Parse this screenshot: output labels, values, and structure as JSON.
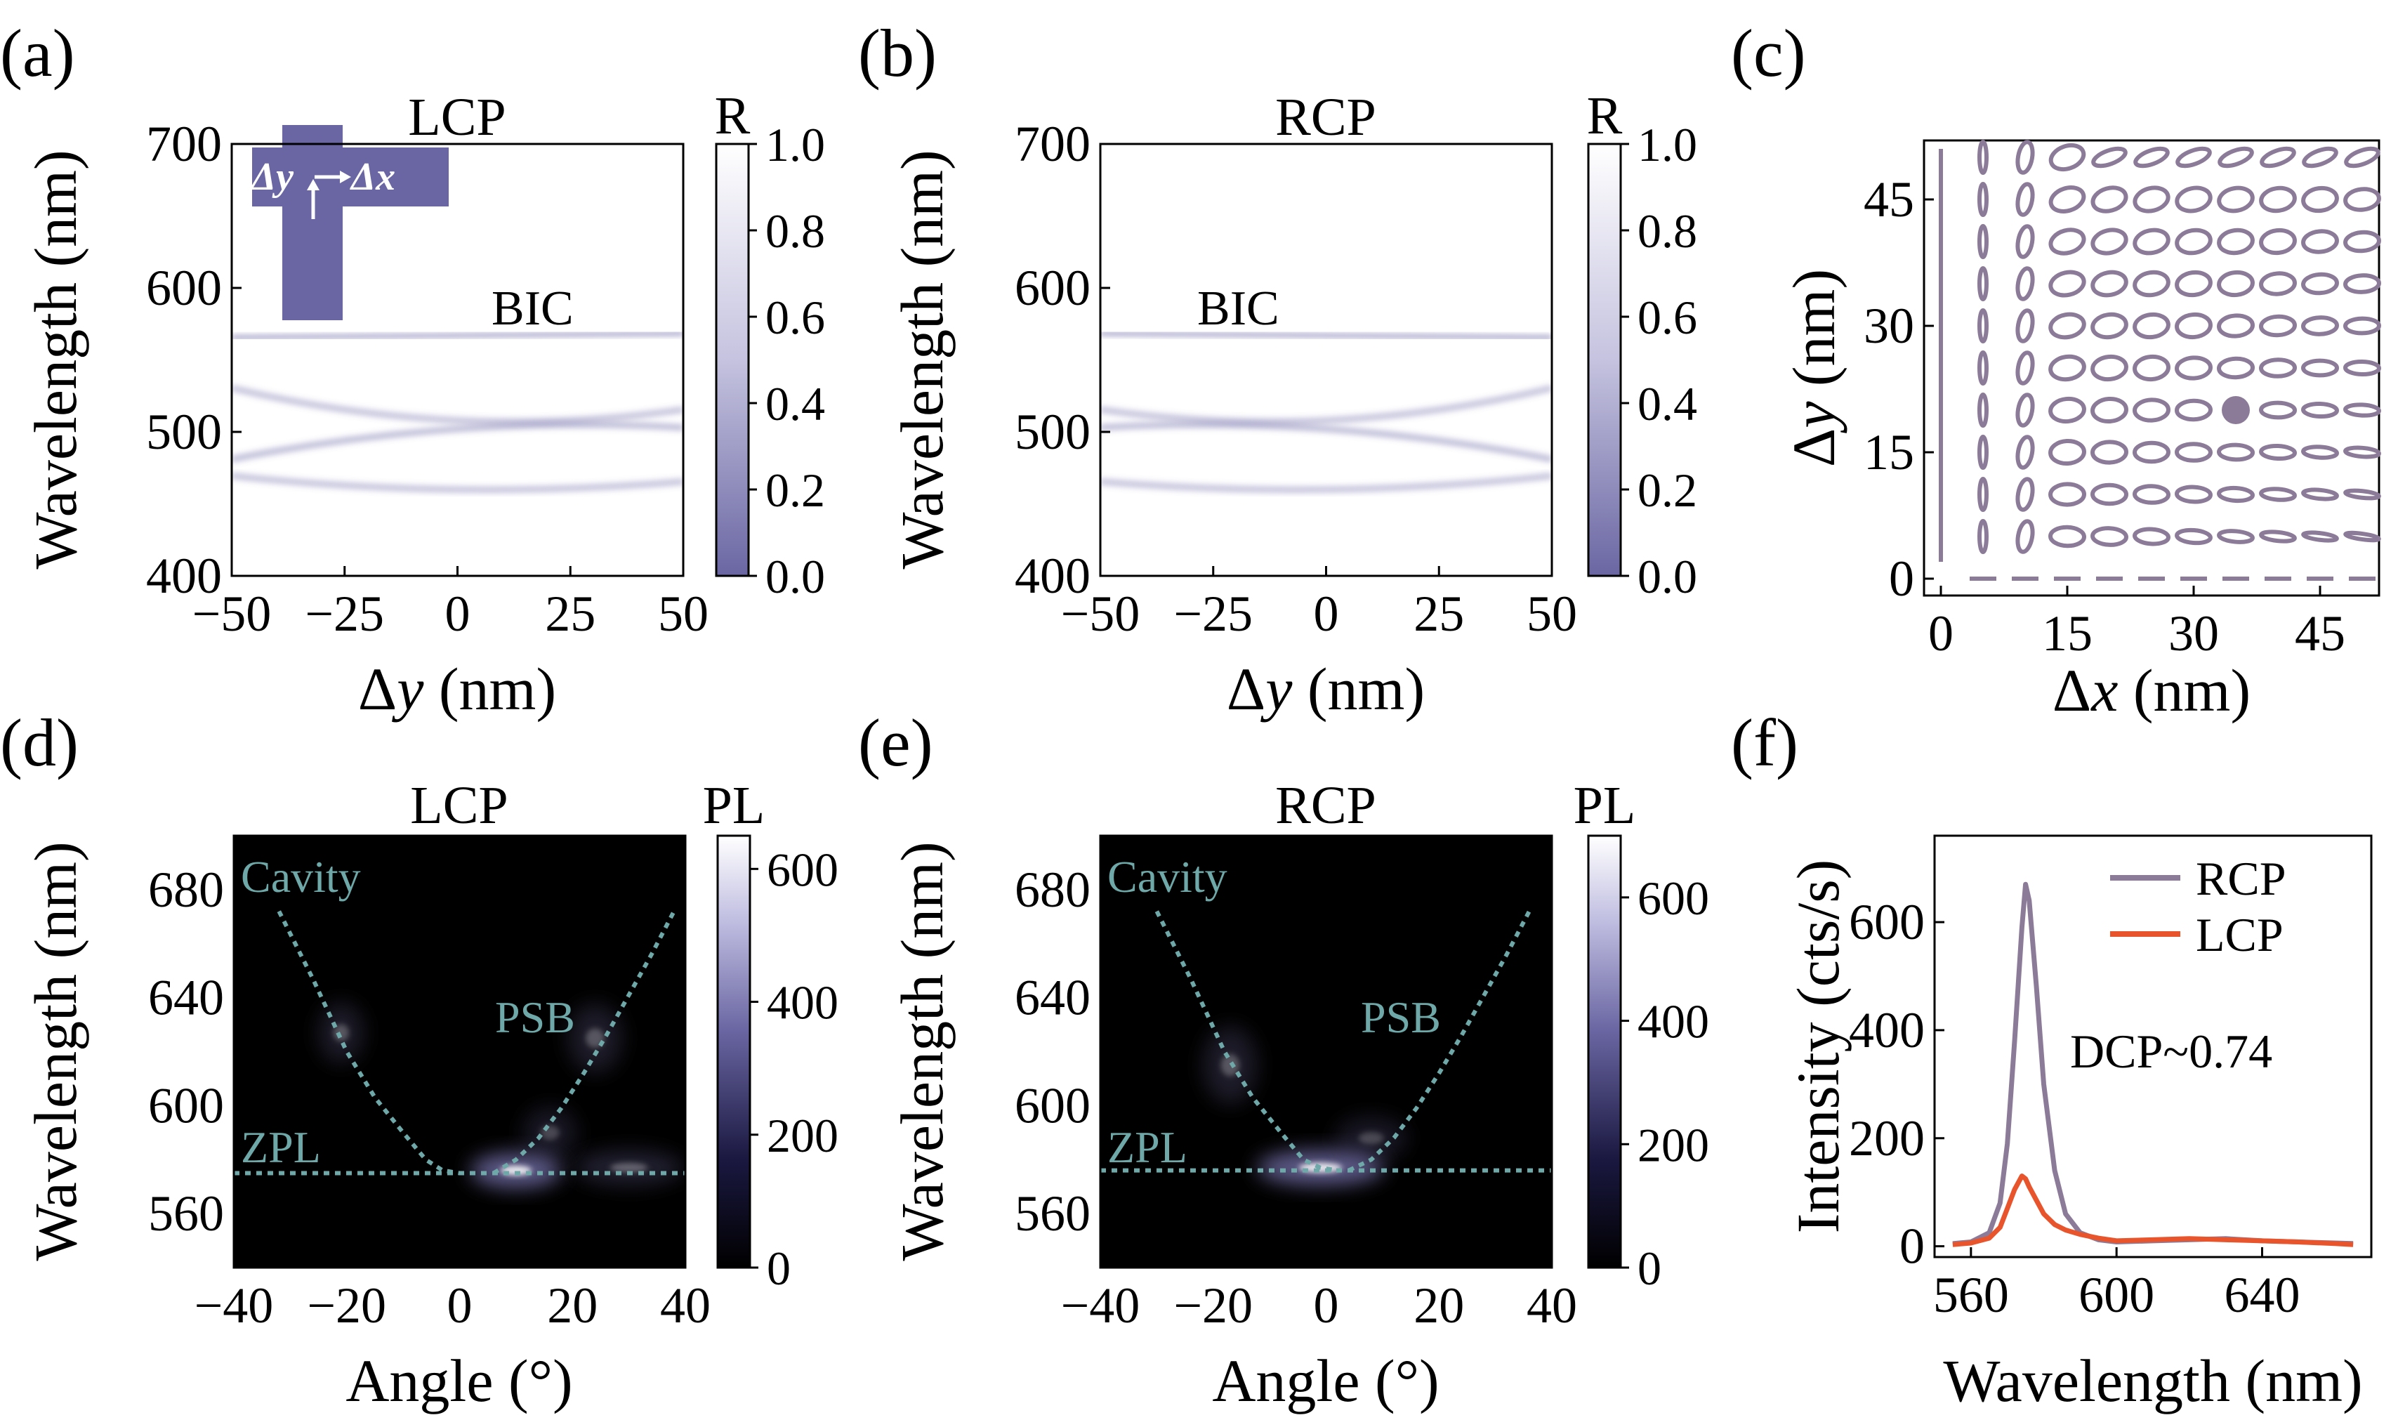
{
  "colors": {
    "purple": "#6a66a3",
    "grey_purple": "#8c7b98",
    "orange": "#e8542c",
    "cyan": "#6fa8a8",
    "ellipse": "#8c7b98"
  },
  "panels": {
    "a": {
      "letter": "(a)",
      "title": "LCP",
      "ylabel": "Wavelength (nm)",
      "xlabel_pre": "Δ",
      "xlabel_var": "y",
      "xlabel_unit": " (nm)",
      "cbar_label": "R",
      "annotation": "BIC",
      "inset_dy": "Δy",
      "inset_dx": "Δx"
    },
    "b": {
      "letter": "(b)",
      "title": "RCP",
      "ylabel": "Wavelength (nm)",
      "xlabel_pre": "Δ",
      "xlabel_var": "y",
      "xlabel_unit": " (nm)",
      "cbar_label": "R",
      "annotation": "BIC"
    },
    "c": {
      "letter": "(c)",
      "ylabel_pre": "Δ",
      "ylabel_var": "y",
      "ylabel_unit": " (nm)",
      "xlabel_pre": "Δ",
      "xlabel_var": "x",
      "xlabel_unit": " (nm)"
    },
    "d": {
      "letter": "(d)",
      "title": "LCP",
      "ylabel": "Wavelength (nm)",
      "xlabel": "Angle (°)",
      "cbar_label": "PL",
      "ann_cavity": "Cavity",
      "ann_psb": "PSB",
      "ann_zpl": "ZPL"
    },
    "e": {
      "letter": "(e)",
      "title": "RCP",
      "ylabel": "Wavelength (nm)",
      "xlabel": "Angle (°)",
      "cbar_label": "PL",
      "ann_cavity": "Cavity",
      "ann_psb": "PSB",
      "ann_zpl": "ZPL"
    },
    "f": {
      "letter": "(f)",
      "ylabel": "Intensity (cts/s)",
      "xlabel": "Wavelength (nm)",
      "annotation": "DCP~0.74"
    }
  },
  "chart_data": [
    {
      "id": "a",
      "type": "heatmap",
      "title": "LCP",
      "xlabel": "Δy (nm)",
      "ylabel": "Wavelength (nm)",
      "xlim": [
        -50,
        50
      ],
      "ylim": [
        400,
        700
      ],
      "xticks": [
        -50,
        -25,
        0,
        25,
        50
      ],
      "yticks": [
        400,
        500,
        600,
        700
      ],
      "colorbar": {
        "label": "R",
        "range": [
          0.0,
          1.0
        ],
        "ticks": [
          "0.0",
          "0.2",
          "0.4",
          "0.6",
          "0.8",
          "1.0"
        ]
      },
      "bands": [
        {
          "center": 567,
          "slope": 0.025,
          "w": 3,
          "d": 0.6
        },
        {
          "center": 508,
          "slope": -0.15,
          "curv": 0.006,
          "w": 5,
          "d": 0.35
        },
        {
          "center": 502,
          "slope": 0.22,
          "curv": -0.004,
          "w": 5,
          "d": 0.38
        },
        {
          "center": 493,
          "slope": 0,
          "w": 4,
          "d": 0.3
        },
        {
          "center": 460,
          "slope": -0.04,
          "curv": 0.003,
          "w": 5,
          "d": 0.35
        },
        {
          "center": 455,
          "slope": 0,
          "w": 3,
          "d": 0.25
        },
        {
          "center": 445,
          "slope": 0,
          "w": 6,
          "d": 0.12
        },
        {
          "center": 520,
          "slope": 0,
          "w": 14,
          "d": 0.08
        }
      ]
    },
    {
      "id": "b",
      "type": "heatmap",
      "title": "RCP",
      "xlabel": "Δy (nm)",
      "ylabel": "Wavelength (nm)",
      "xlim": [
        -50,
        50
      ],
      "ylim": [
        400,
        700
      ],
      "xticks": [
        -50,
        -25,
        0,
        25,
        50
      ],
      "yticks": [
        400,
        500,
        600,
        700
      ],
      "colorbar": {
        "label": "R",
        "range": [
          0.0,
          1.0
        ],
        "ticks": [
          "0.0",
          "0.2",
          "0.4",
          "0.6",
          "0.8",
          "1.0"
        ]
      },
      "bands": [
        {
          "center": 567,
          "slope": -0.025,
          "w": 3,
          "d": 0.6
        },
        {
          "center": 508,
          "slope": 0.15,
          "curv": 0.006,
          "w": 5,
          "d": 0.35
        },
        {
          "center": 502,
          "slope": -0.22,
          "curv": -0.004,
          "w": 5,
          "d": 0.38
        },
        {
          "center": 493,
          "slope": 0,
          "w": 4,
          "d": 0.3
        },
        {
          "center": 460,
          "slope": 0.04,
          "curv": 0.003,
          "w": 5,
          "d": 0.35
        },
        {
          "center": 455,
          "slope": 0,
          "w": 3,
          "d": 0.25
        },
        {
          "center": 445,
          "slope": 0,
          "w": 6,
          "d": 0.12
        },
        {
          "center": 520,
          "slope": 0,
          "w": 14,
          "d": 0.08
        }
      ]
    },
    {
      "id": "c",
      "type": "scatter",
      "xlabel": "Δx (nm)",
      "ylabel": "Δy (nm)",
      "xlim": [
        -2,
        52
      ],
      "ylim": [
        -2,
        52
      ],
      "xticks": [
        0,
        15,
        30,
        45
      ],
      "yticks": [
        0,
        15,
        30,
        45
      ],
      "grid_x": [
        0,
        5,
        10,
        15,
        20,
        25,
        30,
        35,
        40,
        45,
        50
      ],
      "grid_y": [
        0,
        5,
        10,
        15,
        20,
        25,
        30,
        35,
        40,
        45,
        50
      ],
      "highlight": [
        35,
        20
      ]
    },
    {
      "id": "d",
      "type": "heatmap",
      "title": "LCP",
      "xlabel": "Angle (°)",
      "ylabel": "Wavelength (nm)",
      "xlim": [
        -40,
        40
      ],
      "ylim": [
        540,
        700
      ],
      "xticks": [
        -40,
        -20,
        0,
        20,
        40
      ],
      "yticks": [
        560,
        600,
        640,
        680
      ],
      "colorbar": {
        "label": "PL",
        "range": [
          0,
          650
        ],
        "ticks": [
          "0",
          "200",
          "400",
          "600"
        ]
      },
      "zpl": 575,
      "cavity_x": [
        -32,
        -26,
        -20,
        -15,
        -10,
        -6,
        -3,
        0
      ],
      "cavity_y": [
        672,
        647,
        620,
        603,
        590,
        580,
        576,
        575
      ],
      "psb_x": [
        6,
        10,
        14,
        18,
        22,
        26,
        30,
        34,
        38
      ],
      "psb_y": [
        575,
        580,
        588,
        599,
        612,
        626,
        641,
        656,
        672
      ],
      "spots": [
        {
          "x": 10,
          "y": 576,
          "sx": 5,
          "sy": 4,
          "a": 1.0
        },
        {
          "x": 30,
          "y": 577,
          "sx": 6,
          "sy": 4,
          "a": 0.35
        },
        {
          "x": -21,
          "y": 627,
          "sx": 2.5,
          "sy": 7,
          "a": 0.3
        },
        {
          "x": 24,
          "y": 625,
          "sx": 3,
          "sy": 8,
          "a": 0.3
        },
        {
          "x": 16,
          "y": 590,
          "sx": 3,
          "sy": 6,
          "a": 0.25
        }
      ]
    },
    {
      "id": "e",
      "type": "heatmap",
      "title": "RCP",
      "xlabel": "Angle (°)",
      "ylabel": "Wavelength (nm)",
      "xlim": [
        -40,
        40
      ],
      "ylim": [
        540,
        700
      ],
      "xticks": [
        -40,
        -20,
        0,
        20,
        40
      ],
      "yticks": [
        560,
        600,
        640,
        680
      ],
      "colorbar": {
        "label": "PL",
        "range": [
          0,
          700
        ],
        "ticks": [
          "0",
          "200",
          "400",
          "600"
        ]
      },
      "zpl": 576,
      "cavity_x": [
        -30,
        -24,
        -18,
        -13,
        -8,
        -4,
        -1,
        2
      ],
      "cavity_y": [
        672,
        647,
        620,
        603,
        590,
        580,
        577,
        576
      ],
      "psb_x": [
        4,
        8,
        12,
        16,
        20,
        24,
        28,
        32,
        36
      ],
      "psb_y": [
        576,
        580,
        588,
        599,
        612,
        626,
        641,
        656,
        672
      ],
      "spots": [
        {
          "x": -1,
          "y": 577,
          "sx": 7,
          "sy": 4,
          "a": 1.0
        },
        {
          "x": -17,
          "y": 615,
          "sx": 3,
          "sy": 9,
          "a": 0.3
        },
        {
          "x": 8,
          "y": 588,
          "sx": 4,
          "sy": 5,
          "a": 0.25
        }
      ]
    },
    {
      "id": "f",
      "type": "line",
      "xlabel": "Wavelength (nm)",
      "ylabel": "Intensity (cts/s)",
      "xlim": [
        550,
        670
      ],
      "ylim": [
        -20,
        760
      ],
      "xticks": [
        560,
        600,
        640
      ],
      "yticks": [
        0,
        200,
        400,
        600
      ],
      "legend": "top-right",
      "series": [
        {
          "name": "RCP",
          "color": "#8c7b98",
          "x": [
            555,
            560,
            565,
            568,
            570,
            572,
            574,
            575,
            576,
            578,
            580,
            583,
            586,
            590,
            595,
            600,
            610,
            620,
            630,
            640,
            650,
            660,
            665
          ],
          "y": [
            5,
            8,
            25,
            80,
            190,
            380,
            590,
            670,
            640,
            480,
            300,
            140,
            60,
            25,
            12,
            8,
            10,
            12,
            14,
            10,
            8,
            6,
            5
          ]
        },
        {
          "name": "LCP",
          "color": "#e8542c",
          "x": [
            555,
            560,
            565,
            568,
            570,
            572,
            574,
            575,
            576,
            578,
            580,
            583,
            586,
            590,
            595,
            600,
            610,
            620,
            630,
            640,
            650,
            660,
            665
          ],
          "y": [
            3,
            6,
            15,
            35,
            70,
            105,
            130,
            125,
            110,
            85,
            60,
            40,
            30,
            22,
            15,
            10,
            12,
            14,
            12,
            10,
            8,
            5,
            3
          ]
        }
      ]
    }
  ]
}
